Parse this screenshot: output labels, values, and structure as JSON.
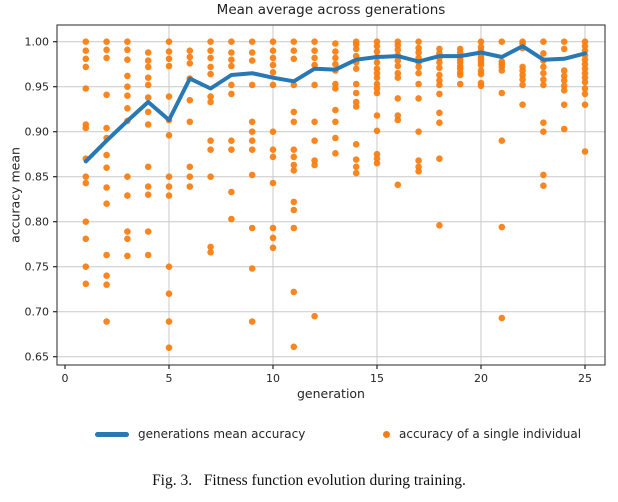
{
  "title": "Mean average across generations",
  "axes": {
    "xlabel": "generation",
    "ylabel": "accuracy mean",
    "xticks": [
      0,
      5,
      10,
      15,
      20,
      25
    ],
    "ytick_labels": [
      "0.65",
      "0.70",
      "0.75",
      "0.80",
      "0.85",
      "0.90",
      "0.95",
      "1.00"
    ],
    "xlim": [
      -0.4,
      26.4
    ],
    "ylim": [
      0.641,
      1.019
    ],
    "grid": true
  },
  "legend": {
    "line_label": "generations mean accuracy",
    "scatter_label": "accuracy of a single individual",
    "position": "below-chart"
  },
  "caption": "Fig. 3.   Fitness function evolution during training.",
  "colors": {
    "mean_line": "#2878b4",
    "individual_dot": "#f97d0e",
    "grid": "#c9c9c9",
    "spine": "#4a4a4a",
    "tick": "#262626",
    "text": "#262626"
  },
  "chart_data": {
    "type": "line+scatter",
    "x": [
      1,
      2,
      3,
      4,
      5,
      6,
      7,
      8,
      9,
      10,
      11,
      12,
      13,
      14,
      15,
      16,
      17,
      18,
      19,
      20,
      21,
      22,
      23,
      24,
      25
    ],
    "series": [
      {
        "name": "generations mean accuracy",
        "type": "line",
        "values": [
          0.867,
          0.89,
          0.912,
          0.933,
          0.913,
          0.959,
          0.948,
          0.963,
          0.965,
          0.96,
          0.956,
          0.97,
          0.969,
          0.98,
          0.983,
          0.984,
          0.978,
          0.984,
          0.984,
          0.988,
          0.983,
          0.995,
          0.98,
          0.981,
          0.987
        ]
      },
      {
        "name": "accuracy of a single individual",
        "type": "scatter",
        "points_by_generation": {
          "1": [
            1.0,
            0.99,
            0.981,
            0.972,
            0.948,
            0.908,
            0.904,
            0.87,
            0.85,
            0.843,
            0.8,
            0.781,
            0.75,
            0.731
          ],
          "2": [
            1.0,
            0.991,
            0.982,
            0.941,
            0.904,
            0.893,
            0.874,
            0.86,
            0.838,
            0.82,
            0.763,
            0.74,
            0.73,
            0.689
          ],
          "3": [
            1.0,
            0.991,
            0.98,
            0.962,
            0.95,
            0.94,
            0.926,
            0.912,
            0.85,
            0.829,
            0.789,
            0.781,
            0.762
          ],
          "4": [
            0.988,
            0.979,
            0.972,
            0.96,
            0.952,
            0.938,
            0.922,
            0.908,
            0.861,
            0.839,
            0.83,
            0.789,
            0.763
          ],
          "5": [
            1.0,
            0.989,
            0.981,
            0.973,
            0.939,
            0.913,
            0.896,
            0.85,
            0.839,
            0.829,
            0.75,
            0.72,
            0.689,
            0.66
          ],
          "6": [
            0.99,
            0.983,
            0.976,
            0.959,
            0.935,
            0.911,
            0.861,
            0.85,
            0.839
          ],
          "7": [
            1.0,
            0.99,
            0.982,
            0.972,
            0.964,
            0.939,
            0.933,
            0.89,
            0.88,
            0.85,
            0.772,
            0.766
          ],
          "8": [
            1.0,
            0.988,
            0.98,
            0.973,
            0.952,
            0.942,
            0.89,
            0.88,
            0.833,
            0.803
          ],
          "9": [
            1.0,
            0.988,
            0.979,
            0.952,
            0.911,
            0.9,
            0.89,
            0.88,
            0.852,
            0.793,
            0.748,
            0.689
          ],
          "10": [
            1.0,
            0.99,
            0.982,
            0.974,
            0.966,
            0.952,
            0.9,
            0.88,
            0.872,
            0.843,
            0.793,
            0.782,
            0.771
          ],
          "11": [
            1.0,
            0.99,
            0.981,
            0.952,
            0.922,
            0.911,
            0.88,
            0.872,
            0.863,
            0.857,
            0.822,
            0.813,
            0.793,
            0.722,
            0.661
          ],
          "12": [
            1.0,
            0.99,
            0.982,
            0.974,
            0.952,
            0.911,
            0.89,
            0.868,
            0.863,
            0.695
          ],
          "13": [
            0.998,
            0.989,
            0.982,
            0.975,
            0.968,
            0.953,
            0.948,
            0.924,
            0.911,
            0.893,
            0.876
          ],
          "14": [
            1.0,
            0.997,
            0.992,
            0.984,
            0.977,
            0.97,
            0.953,
            0.943,
            0.933,
            0.928,
            0.886,
            0.869,
            0.861,
            0.854
          ],
          "15": [
            1.0,
            0.995,
            0.989,
            0.983,
            0.977,
            0.97,
            0.965,
            0.96,
            0.953,
            0.948,
            0.943,
            0.918,
            0.901,
            0.875,
            0.87,
            0.865
          ],
          "16": [
            1.0,
            0.996,
            0.991,
            0.985,
            0.979,
            0.973,
            0.965,
            0.96,
            0.937,
            0.918,
            0.913,
            0.841
          ],
          "17": [
            1.0,
            0.993,
            0.988,
            0.982,
            0.977,
            0.972,
            0.965,
            0.953,
            0.937,
            0.9,
            0.868,
            0.861,
            0.856
          ],
          "18": [
            0.992,
            0.987,
            0.982,
            0.977,
            0.971,
            0.963,
            0.957,
            0.952,
            0.942,
            0.921,
            0.91,
            0.87,
            0.796
          ],
          "19": [
            0.992,
            0.988,
            0.984,
            0.98,
            0.977,
            0.973,
            0.97,
            0.966,
            0.963,
            0.953
          ],
          "20": [
            1.0,
            0.994,
            0.99,
            0.986,
            0.983,
            0.98,
            0.977,
            0.974,
            0.968,
            0.964,
            0.954,
            0.951
          ],
          "21": [
            1.0,
            0.978,
            0.975,
            0.972,
            0.968,
            0.943,
            0.89,
            0.794,
            0.693
          ],
          "22": [
            1.0,
            0.998,
            0.993,
            0.972,
            0.968,
            0.963,
            0.958,
            0.952,
            0.93
          ],
          "23": [
            1.0,
            0.987,
            0.979,
            0.972,
            0.965,
            0.958,
            0.952,
            0.91,
            0.9,
            0.852,
            0.84
          ],
          "24": [
            1.0,
            0.992,
            0.968,
            0.962,
            0.957,
            0.951,
            0.946,
            0.93,
            0.903
          ],
          "25": [
            1.0,
            0.995,
            0.99,
            0.985,
            0.98,
            0.975,
            0.97,
            0.965,
            0.96,
            0.955,
            0.948,
            0.942,
            0.93,
            0.878
          ]
        }
      }
    ]
  }
}
